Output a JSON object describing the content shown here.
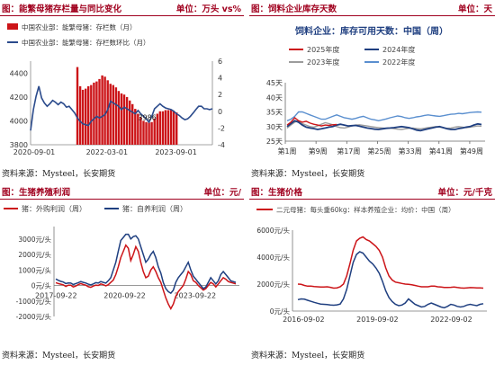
{
  "panels": [
    {
      "title": "图：能繁母猪存栏量与同比变化",
      "unit": "单位：万头 vs%",
      "source": "资料来源：Mysteel，长安期货"
    },
    {
      "title": "图：饲料企业库存天数",
      "unit": "单位：天",
      "source": "资料来源：Mysteel，长安期货"
    },
    {
      "title": "图：生猪养殖利润",
      "unit": "单位：元/",
      "source": "资料来源：Mysteel，长安期货"
    },
    {
      "title": "图：生猪价格",
      "unit": "单位：元/千克",
      "source": "资料来源：Mysteel，长安期货"
    }
  ],
  "chart_data": [
    {
      "type": "bar",
      "legend": [
        "中国农业部：能繁母猪：存栏数（月）",
        "中国农业部：能繁母猪：存栏数环比（月）"
      ],
      "colors": [
        "#cc1418",
        "#2b4b8c"
      ],
      "x_ticks": [
        "2020-09-01",
        "2022-03-01",
        "2023-09-01"
      ],
      "y_left_ticks": [
        "3800",
        "4000",
        "4200",
        "4400"
      ],
      "y_right_ticks": [
        "-4",
        "-2",
        "0",
        "2",
        "4",
        "6"
      ],
      "ylim_left": [
        3800,
        4500
      ],
      "ylim_right": [
        -4,
        6
      ],
      "annotation": "3986",
      "bar_start_index": 17,
      "line_values": [
        -2.3,
        0.2,
        1.8,
        3.0,
        1.6,
        1.0,
        0.6,
        0.9,
        1.3,
        1.1,
        0.8,
        1.1,
        0.9,
        0.5,
        0.6,
        0.2,
        -0.2,
        -0.8,
        -1.2,
        -1.5,
        -1.6,
        -1.7,
        -1.2,
        -0.9,
        -0.6,
        -0.8,
        -0.6,
        -0.4,
        0.2,
        1.2,
        1.0,
        0.8,
        0.6,
        0.2,
        0.5,
        0.3,
        0.1,
        -0.1,
        -0.3,
        0.1,
        -0.3,
        -0.6,
        -0.9,
        -1.3,
        -0.6,
        0.3,
        0.6,
        0.9,
        0.6,
        0.4,
        0.3,
        0.2,
        0.0,
        -0.3,
        -0.5,
        -0.8,
        -1.0,
        -0.9,
        -0.6,
        -0.2,
        0.2,
        0.6,
        0.6,
        0.3,
        0.3,
        0.2,
        0.3
      ],
      "bar_values": [
        4450,
        4290,
        4260,
        4270,
        4290,
        4300,
        4320,
        4330,
        4350,
        4380,
        4370,
        4340,
        4310,
        4300,
        4280,
        4250,
        4230,
        4220,
        4200,
        4170,
        4140,
        4100,
        4060,
        4030,
        4000,
        3990,
        3986,
        3990,
        4020,
        4060,
        4080,
        4080,
        4090,
        4090,
        4090,
        4080,
        4070
      ]
    },
    {
      "type": "line",
      "title": "饲料企业：库存可用天数：中国（周）",
      "legend": [
        "2025年度",
        "2024年度",
        "2023年度",
        "2022年度"
      ],
      "colors": [
        "#cc1418",
        "#1f3f80",
        "#9c9c9c",
        "#5a8fcf"
      ],
      "x_ticks": [
        "第1周",
        "第9周",
        "第17周",
        "第25周",
        "第33周",
        "第41周",
        "第49周"
      ],
      "y_ticks": [
        "25天",
        "30天",
        "35天",
        "40天",
        "45天"
      ],
      "ylim": [
        25,
        45
      ],
      "series": [
        {
          "name": "2025年度",
          "values": [
            30.5,
            31.5,
            33.0,
            32.0,
            31.5,
            31.8,
            31.2,
            30.8,
            30.5,
            30.2,
            30.5,
            30.4,
            30.6,
            30.7
          ]
        },
        {
          "name": "2024年度",
          "values": [
            30.0,
            31.0,
            32.0,
            31.5,
            30.5,
            29.8,
            29.5,
            29.3,
            29.0,
            29.2,
            29.5,
            29.8,
            30.0,
            30.5,
            30.8,
            30.5,
            30.2,
            30.3,
            30.4,
            30.1,
            29.8,
            29.5,
            29.3,
            29.1,
            29.0,
            29.2,
            29.4,
            29.5,
            29.6,
            29.8,
            30.0,
            29.8,
            29.6,
            29.2,
            28.8,
            28.6,
            28.9,
            29.2,
            29.5,
            29.8,
            30.0,
            29.6,
            29.2,
            29.0,
            29.0,
            29.3,
            29.5,
            29.8,
            30.0,
            30.5,
            30.9,
            30.7
          ]
        },
        {
          "name": "2023年度",
          "values": [
            29.5,
            30.5,
            31.5,
            32.0,
            31.0,
            30.5,
            30.0,
            29.8,
            30.2,
            30.8,
            31.3,
            31.0,
            30.6,
            30.0,
            29.6,
            29.5,
            29.8,
            30.2,
            30.5,
            30.6,
            30.4,
            30.2,
            30.0,
            29.8,
            29.6,
            29.5,
            29.4,
            29.5,
            29.3,
            29.1,
            29.0,
            29.2,
            29.4,
            29.5,
            29.3,
            29.2,
            29.4,
            29.6,
            29.8,
            30.0,
            29.8,
            29.6,
            29.4,
            29.5,
            29.8,
            30.0,
            29.8,
            29.6,
            29.8,
            30.0,
            30.2,
            30.1
          ]
        },
        {
          "name": "2022年度",
          "values": [
            32.0,
            32.5,
            33.5,
            35.0,
            35.0,
            34.5,
            34.0,
            33.5,
            33.0,
            32.5,
            32.5,
            33.0,
            33.5,
            34.0,
            33.5,
            33.0,
            32.8,
            32.5,
            32.8,
            33.2,
            33.5,
            33.0,
            32.5,
            32.3,
            32.0,
            32.3,
            32.6,
            33.0,
            33.3,
            33.6,
            33.4,
            33.0,
            32.8,
            33.0,
            33.3,
            33.5,
            33.8,
            34.0,
            33.8,
            33.6,
            33.5,
            33.7,
            34.0,
            34.2,
            34.3,
            34.5,
            34.4,
            34.6,
            34.8,
            34.9,
            35.0,
            34.9
          ]
        }
      ]
    },
    {
      "type": "line",
      "legend": [
        "猪：外购利润（周）",
        "猪：自养利润（周）"
      ],
      "colors": [
        "#cc1418",
        "#1f3f80"
      ],
      "x_ticks": [
        "2017-09-22",
        "2020-09-22",
        "2023-09-22"
      ],
      "y_ticks": [
        "-2000元/头",
        "-1000元/头",
        "0元/头",
        "1000元/头",
        "2000元/头",
        "3000元/头"
      ],
      "ylim": [
        -2000,
        3800
      ],
      "series": [
        {
          "name": "猪：外购利润（周）",
          "values": [
            180,
            120,
            80,
            40,
            -60,
            20,
            10,
            -100,
            -40,
            60,
            120,
            60,
            20,
            -80,
            -120,
            -40,
            20,
            0,
            100,
            50,
            -20,
            50,
            200,
            350,
            700,
            1200,
            1800,
            2200,
            2600,
            2400,
            1600,
            2000,
            2500,
            2200,
            1500,
            900,
            500,
            600,
            1000,
            1200,
            900,
            500,
            200,
            -300,
            -800,
            -1200,
            -1500,
            -1200,
            -700,
            -400,
            -200,
            0,
            400,
            900,
            700,
            300,
            200,
            0,
            -150,
            -300,
            -200,
            0,
            200,
            100,
            -100,
            100,
            300,
            500,
            400,
            250,
            200,
            150,
            100
          ]
        },
        {
          "name": "猪：自养利润（周）",
          "values": [
            420,
            330,
            260,
            220,
            120,
            160,
            150,
            60,
            120,
            180,
            250,
            200,
            160,
            80,
            40,
            100,
            180,
            160,
            250,
            200,
            150,
            300,
            500,
            1000,
            1500,
            2200,
            2900,
            3100,
            3300,
            3300,
            3000,
            3150,
            3200,
            3000,
            2500,
            2000,
            1500,
            1700,
            2000,
            2200,
            1800,
            1200,
            800,
            200,
            -200,
            -400,
            -500,
            -300,
            200,
            500,
            700,
            900,
            1200,
            1500,
            1000,
            600,
            400,
            200,
            0,
            -200,
            -100,
            200,
            500,
            300,
            100,
            300,
            700,
            900,
            700,
            500,
            300,
            250,
            200
          ]
        }
      ]
    },
    {
      "type": "line",
      "legend": [
        "二元母猪：每头重60kg：样本养殖企业：均价：中国（周）"
      ],
      "colors": [
        "#cc1418",
        "#1f3f80"
      ],
      "x_ticks": [
        "2016-09-02",
        "2019-09-02",
        "2022-09-02"
      ],
      "y_ticks": [
        "0元/头",
        "2000元/头",
        "4000元/头",
        "6000元/头"
      ],
      "ylim": [
        0,
        6000
      ],
      "series": [
        {
          "name": "二元母猪：每头重60kg：样本养殖企业：均价：中国（周）",
          "values": [
            2000,
            1980,
            1900,
            1850,
            1850,
            1820,
            1800,
            1780,
            1790,
            1800,
            1760,
            1700,
            1720,
            1800,
            2000,
            2600,
            3500,
            4500,
            5200,
            5400,
            5500,
            5300,
            5200,
            5000,
            4800,
            4500,
            4000,
            3200,
            2600,
            2300,
            2150,
            2100,
            2050,
            2000,
            1980,
            1950,
            1900,
            1850,
            1800,
            1800,
            1800,
            1850,
            1850,
            1800,
            1780,
            1750,
            1750,
            1760,
            1780,
            1750,
            1720,
            1700,
            1720,
            1740,
            1730,
            1720,
            1710,
            1700
          ]
        },
        {
          "name": "",
          "values": [
            850,
            900,
            880,
            800,
            720,
            650,
            580,
            520,
            500,
            480,
            450,
            430,
            460,
            520,
            900,
            1600,
            2600,
            3600,
            4200,
            4400,
            4300,
            4000,
            3700,
            3500,
            3200,
            2800,
            2200,
            1500,
            1000,
            700,
            500,
            400,
            450,
            600,
            900,
            700,
            500,
            400,
            300,
            350,
            500,
            600,
            500,
            400,
            300,
            250,
            350,
            500,
            450,
            350,
            300,
            350,
            450,
            500,
            450,
            400,
            500,
            550
          ]
        }
      ]
    }
  ]
}
